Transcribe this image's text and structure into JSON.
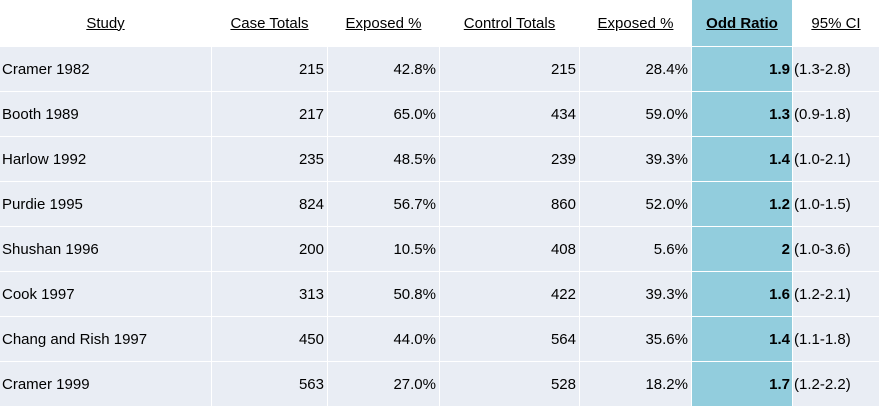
{
  "columns": {
    "study": "Study",
    "case_totals": "Case Totals",
    "case_exposed": "Exposed %",
    "control_totals": "Control Totals",
    "control_exposed": "Exposed %",
    "odds_ratio": "Odd Ratio",
    "ci": "95% CI"
  },
  "highlight_color": "#92cddd",
  "row_color": "#e9edf4",
  "rows": [
    {
      "study": "Cramer 1982",
      "case_totals": "215",
      "case_exposed": "42.8%",
      "control_totals": "215",
      "control_exposed": "28.4%",
      "odds_ratio": "1.9",
      "ci": "(1.3-2.8)"
    },
    {
      "study": "Booth 1989",
      "case_totals": "217",
      "case_exposed": "65.0%",
      "control_totals": "434",
      "control_exposed": "59.0%",
      "odds_ratio": "1.3",
      "ci": "(0.9-1.8)"
    },
    {
      "study": "Harlow 1992",
      "case_totals": "235",
      "case_exposed": "48.5%",
      "control_totals": "239",
      "control_exposed": "39.3%",
      "odds_ratio": "1.4",
      "ci": "(1.0-2.1)"
    },
    {
      "study": "Purdie 1995",
      "case_totals": "824",
      "case_exposed": "56.7%",
      "control_totals": "860",
      "control_exposed": "52.0%",
      "odds_ratio": "1.2",
      "ci": "(1.0-1.5)"
    },
    {
      "study": "Shushan 1996",
      "case_totals": "200",
      "case_exposed": "10.5%",
      "control_totals": "408",
      "control_exposed": "5.6%",
      "odds_ratio": "2",
      "ci": "(1.0-3.6)"
    },
    {
      "study": "Cook 1997",
      "case_totals": "313",
      "case_exposed": "50.8%",
      "control_totals": "422",
      "control_exposed": "39.3%",
      "odds_ratio": "1.6",
      "ci": "(1.2-2.1)"
    },
    {
      "study": "Chang and Rish 1997",
      "case_totals": "450",
      "case_exposed": "44.0%",
      "control_totals": "564",
      "control_exposed": "35.6%",
      "odds_ratio": "1.4",
      "ci": "(1.1-1.8)"
    },
    {
      "study": "Cramer 1999",
      "case_totals": "563",
      "case_exposed": "27.0%",
      "control_totals": "528",
      "control_exposed": "18.2%",
      "odds_ratio": "1.7",
      "ci": "(1.2-2.2)"
    }
  ]
}
